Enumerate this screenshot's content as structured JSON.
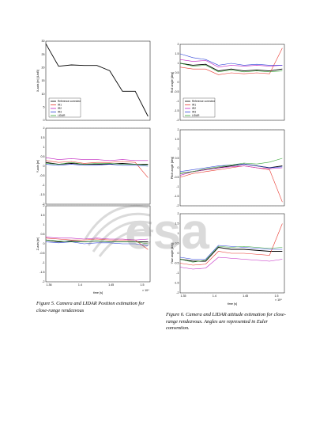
{
  "colors": {
    "reference": "#000000",
    "ir1": "#e8382f",
    "ir2": "#c020c0",
    "ir3": "#2a3fd8",
    "lidar": "#3aa93a"
  },
  "watermark_text": "esa",
  "legend_labels": [
    "Reference corrected",
    "IR1",
    "IR2",
    "IR3",
    "LIDAR"
  ],
  "captions": {
    "left": "Figure 5. Camera and LIDAR Position estimation for close-range rendezvous",
    "right": "Figure 6. Camera and LIDAR attitude estimation for close-range rendezvous. Angles are represented in Euler convention."
  },
  "chart_data": [
    {
      "type": "line",
      "ylabel": "X-axis [m] (LtoB)",
      "ylim": [
        0,
        30
      ],
      "yticks": [
        "0",
        "5",
        "10",
        "15",
        "20",
        "25",
        "30"
      ],
      "legend": "bottom-left",
      "series": [
        {
          "name": "Reference corrected",
          "x": [
            1.36,
            1.375,
            1.38,
            1.395,
            1.44,
            1.45,
            1.47,
            1.5,
            1.52
          ],
          "values": [
            29,
            20.5,
            21,
            20.8,
            20.8,
            18.8,
            11,
            11,
            1.5
          ]
        }
      ]
    },
    {
      "type": "line",
      "ylabel": "Y-axis [m]",
      "ylim": [
        -2,
        2
      ],
      "yticks": [
        "-2",
        "-1.5",
        "-1",
        "-0.5",
        "0",
        "0.5",
        "1",
        "1.5",
        "2"
      ],
      "series": [
        {
          "name": "Reference corrected",
          "values": [
            0.2,
            0.1,
            0.15,
            0.1,
            0.1,
            0.12,
            0.15,
            0.1,
            0.1
          ]
        },
        {
          "name": "IR1",
          "values": [
            0.3,
            0.2,
            0.25,
            0.15,
            0.2,
            0.2,
            0.25,
            0.2,
            -0.6
          ]
        },
        {
          "name": "IR2",
          "values": [
            0.45,
            0.35,
            0.4,
            0.35,
            0.35,
            0.3,
            0.35,
            0.3,
            0.3
          ]
        },
        {
          "name": "IR3",
          "values": [
            0.1,
            0.05,
            0.1,
            0.05,
            0.05,
            0.1,
            0.05,
            0.05,
            0.0
          ]
        },
        {
          "name": "LIDAR",
          "values": [
            0.15,
            0.1,
            0.2,
            0.1,
            0.15,
            0.15,
            0.1,
            0.1,
            0.05
          ]
        }
      ]
    },
    {
      "type": "line",
      "ylabel": "Z-axis [m]",
      "xlabel": "time [s]",
      "ylim": [
        -2,
        2
      ],
      "yticks": [
        "-2",
        "-1.5",
        "-1",
        "-0.5",
        "0",
        "0.5",
        "1",
        "1.5",
        "2"
      ],
      "xticks": [
        "1.36",
        "1.4",
        "1.45",
        "1.5"
      ],
      "xexp": "× 10⁴",
      "series": [
        {
          "name": "Reference corrected",
          "values": [
            0.2,
            0.1,
            0.15,
            0.1,
            0.15,
            0.1,
            0.1,
            0.1,
            0.1
          ]
        },
        {
          "name": "IR1",
          "values": [
            0.3,
            0.25,
            0.2,
            0.2,
            0.25,
            0.2,
            0.2,
            0.2,
            -0.3
          ]
        },
        {
          "name": "IR2",
          "values": [
            0.35,
            0.3,
            0.3,
            0.25,
            0.3,
            0.25,
            0.25,
            0.2,
            0.25
          ]
        },
        {
          "name": "IR3",
          "values": [
            0.1,
            0.05,
            0.1,
            0.0,
            0.05,
            0.05,
            0.0,
            0.0,
            -0.1
          ]
        },
        {
          "name": "LIDAR",
          "values": [
            0.2,
            0.15,
            0.1,
            0.1,
            0.15,
            0.1,
            0.1,
            0.1,
            0.0
          ]
        }
      ]
    },
    {
      "type": "line",
      "ylabel": "Roll angle [deg]",
      "ylim": [
        -2,
        2
      ],
      "yticks": [
        "-2",
        "-1.5",
        "-1",
        "-0.5",
        "0",
        "0.5",
        "1",
        "1.5",
        "2"
      ],
      "legend": "bottom-left",
      "series": [
        {
          "name": "Reference corrected",
          "values": [
            1.0,
            0.9,
            0.95,
            0.6,
            0.7,
            0.6,
            0.65,
            0.6,
            0.7
          ]
        },
        {
          "name": "IR1",
          "values": [
            0.8,
            0.7,
            0.7,
            0.4,
            0.5,
            0.45,
            0.5,
            0.45,
            1.8
          ]
        },
        {
          "name": "IR2",
          "values": [
            1.2,
            1.1,
            1.15,
            0.8,
            0.9,
            0.85,
            0.9,
            0.85,
            0.9
          ]
        },
        {
          "name": "IR3",
          "values": [
            1.5,
            1.3,
            1.2,
            0.9,
            1.0,
            0.9,
            0.95,
            0.9,
            0.9
          ]
        },
        {
          "name": "LIDAR",
          "values": [
            1.0,
            0.85,
            0.9,
            0.55,
            0.65,
            0.55,
            0.6,
            0.55,
            0.6
          ]
        }
      ]
    },
    {
      "type": "line",
      "ylabel": "Pitch angle [deg]",
      "ylim": [
        -2,
        2
      ],
      "yticks": [
        "-2",
        "-1.5",
        "-1",
        "-0.5",
        "0",
        "0.5",
        "1",
        "1.5",
        "2"
      ],
      "series": [
        {
          "name": "Reference corrected",
          "values": [
            -0.3,
            -0.2,
            -0.1,
            0.0,
            0.1,
            0.2,
            0.1,
            0.0,
            0.1
          ]
        },
        {
          "name": "IR1",
          "values": [
            -0.5,
            -0.3,
            -0.2,
            -0.1,
            0.0,
            0.1,
            0.0,
            -0.1,
            -1.8
          ]
        },
        {
          "name": "IR2",
          "values": [
            -0.4,
            -0.2,
            -0.1,
            0.0,
            0.05,
            0.1,
            0.0,
            -0.05,
            0.0
          ]
        },
        {
          "name": "IR3",
          "values": [
            -0.2,
            -0.1,
            0.0,
            0.1,
            0.15,
            0.2,
            0.1,
            0.0,
            0.05
          ]
        },
        {
          "name": "LIDAR",
          "values": [
            -0.3,
            -0.2,
            -0.05,
            0.05,
            0.15,
            0.25,
            0.2,
            0.3,
            0.5
          ]
        }
      ]
    },
    {
      "type": "line",
      "ylabel": "Yaw angle [deg]",
      "xlabel": "time [s]",
      "ylim": [
        -2,
        2
      ],
      "yticks": [
        "-2",
        "-1.5",
        "-1",
        "-0.5",
        "0",
        "0.5",
        "1",
        "1.5",
        "2"
      ],
      "xticks": [
        "1.35",
        "1.4",
        "1.45",
        "1.5"
      ],
      "xexp": "× 10⁴",
      "series": [
        {
          "name": "Reference corrected",
          "values": [
            -0.3,
            -0.4,
            -0.4,
            0.3,
            0.2,
            0.2,
            0.15,
            0.1,
            0.1
          ]
        },
        {
          "name": "IR1",
          "values": [
            -0.5,
            -0.6,
            -0.55,
            0.1,
            0.0,
            0.0,
            -0.05,
            -0.1,
            1.5
          ]
        },
        {
          "name": "IR2",
          "values": [
            -0.7,
            -0.8,
            -0.75,
            -0.2,
            -0.25,
            -0.3,
            -0.35,
            -0.4,
            -0.3
          ]
        },
        {
          "name": "IR3",
          "values": [
            -0.2,
            -0.3,
            -0.3,
            0.4,
            0.35,
            0.3,
            0.25,
            0.2,
            0.2
          ]
        },
        {
          "name": "LIDAR",
          "values": [
            -0.3,
            -0.45,
            -0.35,
            0.35,
            0.3,
            0.35,
            0.3,
            0.25,
            0.3
          ]
        }
      ]
    }
  ]
}
